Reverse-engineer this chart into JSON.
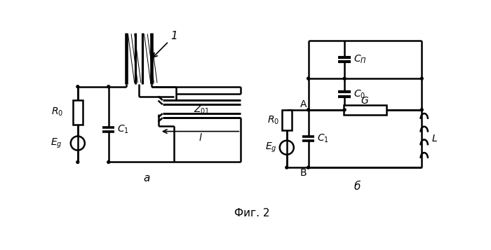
{
  "fig_width": 7.0,
  "fig_height": 3.57,
  "dpi": 100,
  "background": "#ffffff",
  "title": "Фиг. 2",
  "label_a": "а",
  "label_b": "б",
  "lw": 1.8
}
